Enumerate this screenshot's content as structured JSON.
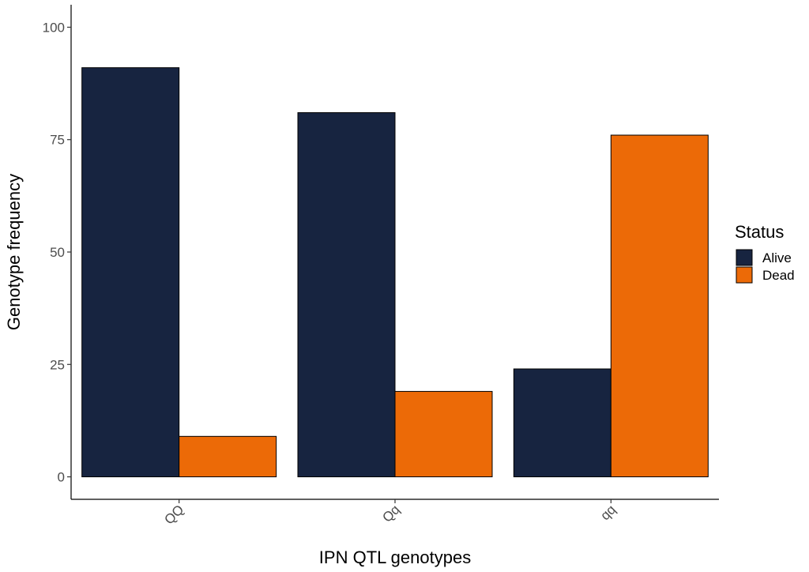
{
  "chart_data": {
    "type": "bar",
    "xlabel": "IPN QTL genotypes",
    "ylabel": "Genotype frequency",
    "categories": [
      "QQ",
      "Qq",
      "qq"
    ],
    "series": [
      {
        "name": "Alive",
        "color": "#172440",
        "values": [
          91,
          81,
          24
        ]
      },
      {
        "name": "Dead",
        "color": "#ec6a07",
        "values": [
          9,
          19,
          76
        ]
      }
    ],
    "yticks": [
      0,
      25,
      50,
      75,
      100
    ],
    "ylim": [
      -5,
      105
    ],
    "grid": false,
    "legend": {
      "title": "Status",
      "placement": "right"
    }
  }
}
